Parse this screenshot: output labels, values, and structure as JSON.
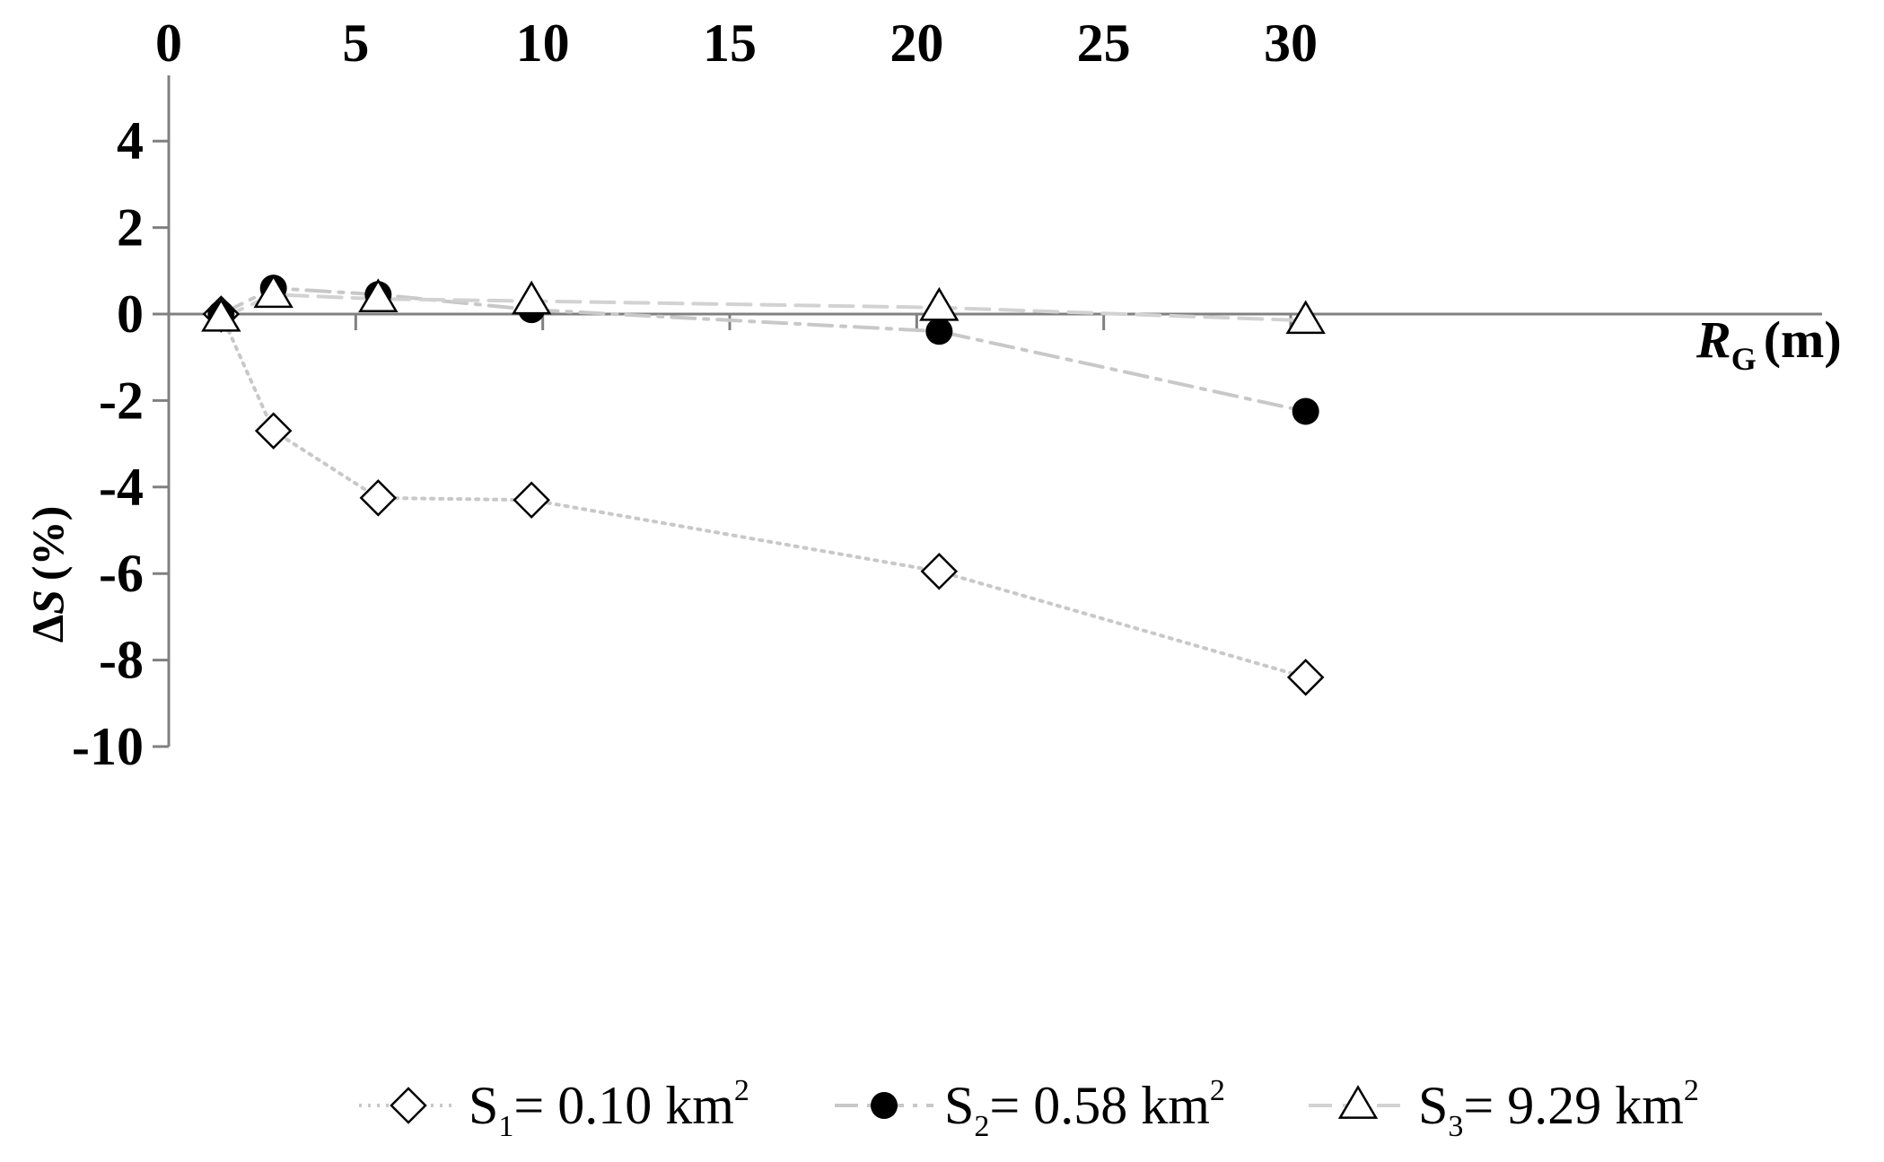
{
  "chart_data": {
    "type": "scatter",
    "xlabel": {
      "main": "R",
      "sub": "G",
      "unit": "(m)"
    },
    "ylabel": {
      "main": "ΔS",
      "unit": "(%)"
    },
    "xlim": [
      0,
      32
    ],
    "ylim": [
      -10,
      5
    ],
    "x_ticks": [
      "0",
      "5",
      "10",
      "15",
      "20",
      "25",
      "30"
    ],
    "y_ticks": [
      "4",
      "2",
      "0",
      "-2",
      "-4",
      "-6",
      "-8",
      "-10"
    ],
    "x_tick_values": [
      0,
      5,
      10,
      15,
      20,
      25,
      30
    ],
    "y_tick_values": [
      4,
      2,
      0,
      -2,
      -4,
      -6,
      -8,
      -10
    ],
    "x_axis_position": "top",
    "grid": false,
    "legend_position": "bottom",
    "series": [
      {
        "name": "S1= 0.10 km2",
        "legend": {
          "main": "S",
          "sub": "1",
          "rest": "= 0.10 km",
          "sup": "2"
        },
        "marker": "diamond-open",
        "line": "dotted",
        "color": "#c8c8c8",
        "x": [
          1.4,
          2.8,
          5.6,
          9.7,
          20.6,
          30.4
        ],
        "y": [
          0.0,
          -2.7,
          -4.25,
          -4.3,
          -5.95,
          -8.4
        ]
      },
      {
        "name": "S2= 0.58 km2",
        "legend": {
          "main": "S",
          "sub": "2",
          "rest": "= 0.58 km",
          "sup": "2"
        },
        "marker": "circle-filled",
        "line": "dash-dot",
        "color": "#c8c8c8",
        "x": [
          1.4,
          2.8,
          5.6,
          9.7,
          20.6,
          30.4
        ],
        "y": [
          0.0,
          0.6,
          0.45,
          0.1,
          -0.4,
          -2.25
        ]
      },
      {
        "name": "S3= 9.29 km2",
        "legend": {
          "main": "S",
          "sub": "3",
          "rest": "= 9.29 km",
          "sup": "2"
        },
        "marker": "triangle-open",
        "line": "dashed",
        "color": "#d2d2d2",
        "x": [
          1.4,
          2.8,
          5.6,
          9.7,
          20.6,
          30.4
        ],
        "y": [
          -0.1,
          0.45,
          0.35,
          0.3,
          0.15,
          -0.15
        ]
      }
    ]
  }
}
